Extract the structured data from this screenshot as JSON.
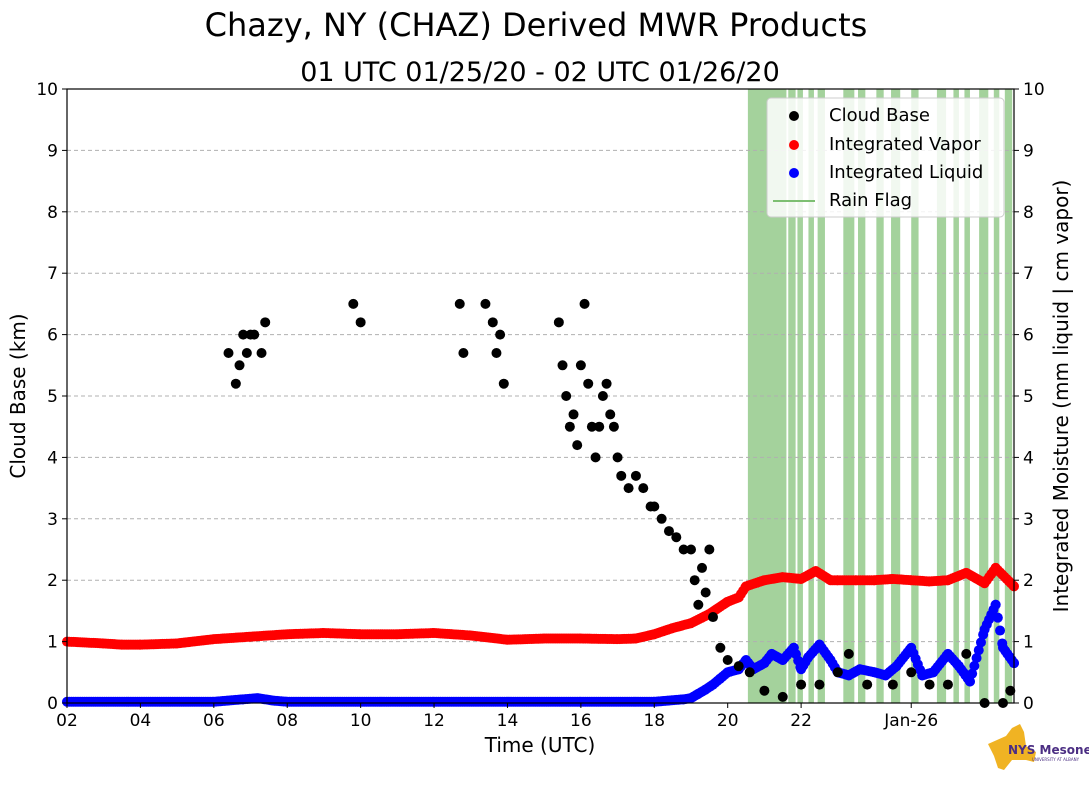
{
  "chart_data": {
    "type": "scatter",
    "title": "Chazy, NY (CHAZ) Derived MWR Products",
    "subtitle": "01 UTC 01/25/20 - 02 UTC 01/26/20",
    "xlabel": "Time (UTC)",
    "ylabel": "Cloud Base (km)",
    "ylabel_right": "Integrated Moisture (mm liquid | cm vapor)",
    "xlim": [
      2,
      27.8
    ],
    "ylim": [
      0,
      10
    ],
    "ylim_right": [
      0,
      10
    ],
    "x_ticks": [
      {
        "x": 2,
        "label": "02"
      },
      {
        "x": 4,
        "label": "04"
      },
      {
        "x": 6,
        "label": "06"
      },
      {
        "x": 8,
        "label": "08"
      },
      {
        "x": 10,
        "label": "10"
      },
      {
        "x": 12,
        "label": "12"
      },
      {
        "x": 14,
        "label": "14"
      },
      {
        "x": 16,
        "label": "16"
      },
      {
        "x": 18,
        "label": "18"
      },
      {
        "x": 20,
        "label": "20"
      },
      {
        "x": 22,
        "label": "22"
      },
      {
        "x": 25,
        "label": "Jan-26"
      }
    ],
    "y_ticks": [
      "0",
      "1",
      "2",
      "3",
      "4",
      "5",
      "6",
      "7",
      "8",
      "9",
      "10"
    ],
    "grid": "horizontal dashed",
    "legend_position": "top-right",
    "legend": [
      "Cloud Base",
      "Integrated Vapor",
      "Integrated Liquid",
      "Rain Flag"
    ],
    "colors": {
      "cloud_base": "#000000",
      "vapor": "#ff0000",
      "liquid": "#0000ff",
      "rain": "#7dbf72"
    },
    "series": [
      {
        "name": "Integrated Vapor",
        "values_description": "continuous trace, hours (UTC, >24 = Jan-26) vs cm",
        "x": [
          2,
          3,
          3.5,
          4,
          5,
          6,
          7,
          8,
          9,
          10,
          11,
          12,
          13,
          14,
          15,
          16,
          17,
          17.5,
          18,
          18.5,
          19,
          19.5,
          20,
          20.3,
          20.5,
          21,
          21.5,
          22,
          22.4,
          22.8,
          23,
          23.5,
          24,
          24.5,
          25,
          25.5,
          26,
          26.5,
          27,
          27.3,
          27.8
        ],
        "values": [
          1.0,
          0.97,
          0.95,
          0.95,
          0.97,
          1.04,
          1.08,
          1.12,
          1.14,
          1.12,
          1.12,
          1.14,
          1.1,
          1.03,
          1.05,
          1.05,
          1.04,
          1.05,
          1.12,
          1.22,
          1.3,
          1.45,
          1.65,
          1.72,
          1.9,
          2.0,
          2.05,
          2.02,
          2.15,
          2.0,
          2.0,
          2.0,
          2.0,
          2.02,
          2.0,
          1.98,
          2.0,
          2.12,
          1.95,
          2.2,
          1.9
        ]
      },
      {
        "name": "Integrated Liquid",
        "x": [
          2,
          6,
          6.8,
          7.2,
          7.6,
          8,
          12,
          16,
          18,
          18.8,
          19,
          19.2,
          19.4,
          19.6,
          19.8,
          20,
          20.3,
          20.5,
          20.7,
          21,
          21.2,
          21.5,
          21.8,
          22,
          22.2,
          22.5,
          22.8,
          23,
          23.3,
          23.6,
          24,
          24.3,
          24.6,
          25,
          25.3,
          25.6,
          26,
          26.3,
          26.6,
          27,
          27.3,
          27.5,
          27.8
        ],
        "values": [
          0.02,
          0.02,
          0.06,
          0.08,
          0.04,
          0.02,
          0.02,
          0.02,
          0.02,
          0.06,
          0.08,
          0.15,
          0.22,
          0.3,
          0.4,
          0.5,
          0.55,
          0.7,
          0.55,
          0.65,
          0.8,
          0.7,
          0.9,
          0.55,
          0.75,
          0.95,
          0.7,
          0.5,
          0.45,
          0.55,
          0.5,
          0.45,
          0.6,
          0.9,
          0.45,
          0.5,
          0.8,
          0.6,
          0.35,
          1.2,
          1.6,
          0.9,
          0.65
        ]
      },
      {
        "name": "Cloud Base",
        "x": [
          6.4,
          6.6,
          6.7,
          6.8,
          6.9,
          7.0,
          7.1,
          7.3,
          7.4,
          9.8,
          10.0,
          12.7,
          12.8,
          13.4,
          13.6,
          13.7,
          13.8,
          13.9,
          15.4,
          15.5,
          15.6,
          15.7,
          15.8,
          15.9,
          16.0,
          16.1,
          16.2,
          16.3,
          16.4,
          16.5,
          16.6,
          16.7,
          16.8,
          16.9,
          17.0,
          17.1,
          17.3,
          17.5,
          17.7,
          17.9,
          18.0,
          18.2,
          18.4,
          18.6,
          18.8,
          19.0,
          19.1,
          19.2,
          19.3,
          19.4,
          19.5,
          19.6,
          19.8,
          20.0,
          20.3,
          20.6,
          21.0,
          21.5,
          22.0,
          22.5,
          23.0,
          23.3,
          23.8,
          24.5,
          25.0,
          25.5,
          26.0,
          26.5,
          27.0,
          27.5,
          27.7
        ],
        "values": [
          5.7,
          5.2,
          5.5,
          6.0,
          5.7,
          6.0,
          6.0,
          5.7,
          6.2,
          6.5,
          6.2,
          6.5,
          5.7,
          6.5,
          6.2,
          5.7,
          6.0,
          5.2,
          6.2,
          5.5,
          5.0,
          4.5,
          4.7,
          4.2,
          5.5,
          6.5,
          5.2,
          4.5,
          4.0,
          4.5,
          5.0,
          5.2,
          4.7,
          4.5,
          4.0,
          3.7,
          3.5,
          3.7,
          3.5,
          3.2,
          3.2,
          3.0,
          2.8,
          2.7,
          2.5,
          2.5,
          2.0,
          1.6,
          2.2,
          1.8,
          2.5,
          1.4,
          0.9,
          0.7,
          0.6,
          0.5,
          0.2,
          0.1,
          0.3,
          0.3,
          0.5,
          0.8,
          0.3,
          0.3,
          0.5,
          0.3,
          0.3,
          0.8,
          0.0,
          0.0,
          0.2
        ]
      }
    ],
    "rain_flag_intervals": [
      [
        20.55,
        21.6
      ],
      [
        21.65,
        21.85
      ],
      [
        21.9,
        22.05
      ],
      [
        22.2,
        22.35
      ],
      [
        22.45,
        22.65
      ],
      [
        23.15,
        23.45
      ],
      [
        23.55,
        23.75
      ],
      [
        24.05,
        24.25
      ],
      [
        24.45,
        24.7
      ],
      [
        25.0,
        25.2
      ],
      [
        25.7,
        25.95
      ],
      [
        26.15,
        26.3
      ],
      [
        26.45,
        26.6
      ],
      [
        26.85,
        27.1
      ],
      [
        27.25,
        27.4
      ],
      [
        27.55,
        27.75
      ]
    ]
  },
  "logo": {
    "name": "NYS Mesonet",
    "text": "NYS Mesonet",
    "sub": "UNIVERSITY AT ALBANY"
  }
}
